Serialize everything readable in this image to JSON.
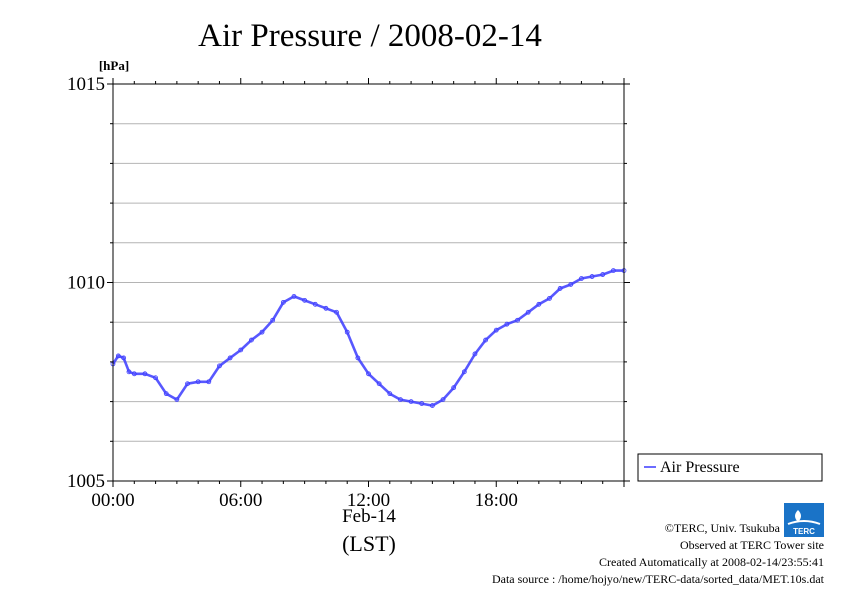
{
  "chart_data": {
    "type": "line",
    "title": "Air Pressure / 2008-02-14",
    "ylabel": "[hPa]",
    "xlabel": "(LST)",
    "date_label": "Feb-14",
    "ylim": [
      1005,
      1015
    ],
    "xlim": [
      0,
      24
    ],
    "y_ticks": [
      "1005",
      "1010",
      "1015"
    ],
    "x_ticks": [
      "00:00",
      "06:00",
      "12:00",
      "18:00"
    ],
    "grid": "horizontal",
    "legend_position": "right",
    "series": [
      {
        "name": "Air Pressure",
        "color": "#3b3bff",
        "x_hours": [
          0,
          0.25,
          0.5,
          0.75,
          1,
          1.5,
          2,
          2.5,
          3,
          3.5,
          4,
          4.5,
          5,
          5.5,
          6,
          6.5,
          7,
          7.5,
          8,
          8.5,
          9,
          9.5,
          10,
          10.5,
          11,
          11.5,
          12,
          12.5,
          13,
          13.5,
          14,
          14.5,
          15,
          15.5,
          16,
          16.5,
          17,
          17.5,
          18,
          18.5,
          19,
          19.5,
          20,
          20.5,
          21,
          21.5,
          22,
          22.5,
          23,
          23.5,
          24
        ],
        "values": [
          1007.95,
          1008.15,
          1008.1,
          1007.75,
          1007.7,
          1007.7,
          1007.6,
          1007.2,
          1007.05,
          1007.45,
          1007.5,
          1007.5,
          1007.9,
          1008.1,
          1008.3,
          1008.55,
          1008.75,
          1009.05,
          1009.5,
          1009.65,
          1009.55,
          1009.45,
          1009.35,
          1009.25,
          1008.75,
          1008.1,
          1007.7,
          1007.45,
          1007.2,
          1007.05,
          1007.0,
          1006.95,
          1006.9,
          1007.05,
          1007.35,
          1007.75,
          1008.2,
          1008.55,
          1008.8,
          1008.95,
          1009.05,
          1009.25,
          1009.45,
          1009.6,
          1009.85,
          1009.95,
          1010.1,
          1010.15,
          1010.2,
          1010.3,
          1010.3
        ]
      }
    ]
  },
  "legend": {
    "label": "Air Pressure"
  },
  "credits": {
    "copyright": "©TERC, Univ. Tsukuba",
    "site": "Observed at TERC Tower site",
    "created": "Created Automatically at 2008-02-14/23:55:41",
    "source": "Data source : /home/hojyo/new/TERC-data/sorted_data/MET.10s.dat",
    "logo_text": "TERC"
  }
}
